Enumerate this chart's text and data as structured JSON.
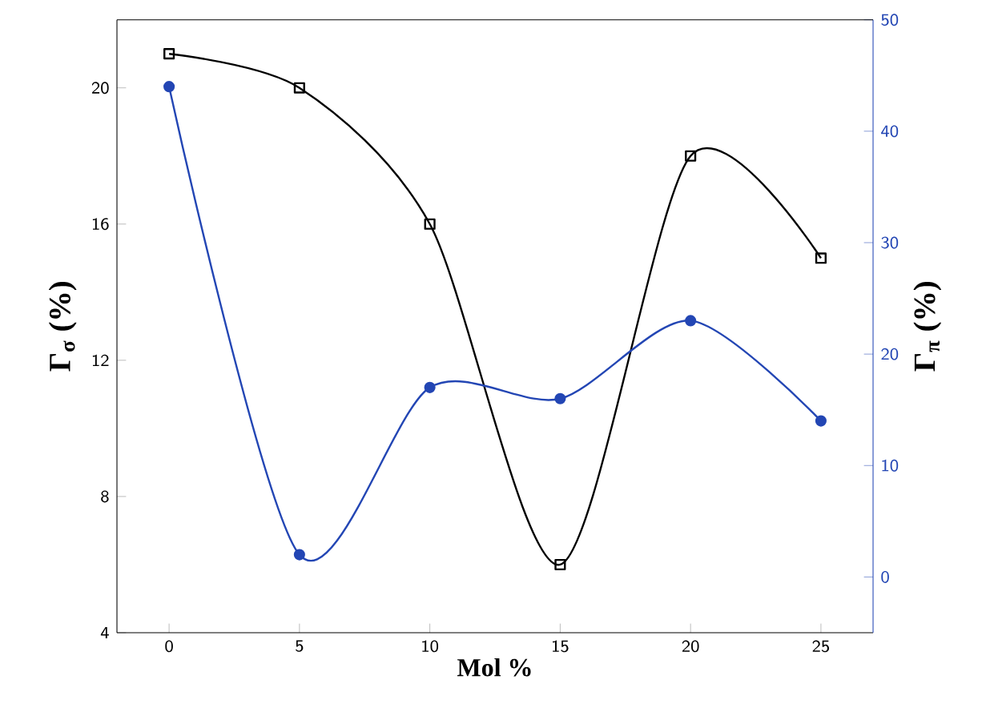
{
  "chart_data": {
    "type": "line",
    "xlabel": "Mol %",
    "ylabel": "Γ$_{σ}$ (%)",
    "y2label": "Γ$_{π}$ (%)",
    "x": [
      0,
      5,
      10,
      15,
      20,
      25
    ],
    "xlim": [
      -2,
      27
    ],
    "xticks": [
      0,
      5,
      10,
      15,
      20,
      25
    ],
    "ylim": [
      4,
      22
    ],
    "yticks": [
      4,
      8,
      12,
      16,
      20
    ],
    "y2lim": [
      -5,
      50
    ],
    "y2ticks": [
      0,
      10,
      20,
      30,
      40,
      50
    ],
    "line_style": "solid",
    "series": [
      {
        "color": "#000000",
        "marker": "square",
        "values": [
          21,
          20,
          16,
          6,
          18,
          15
        ]
      },
      {
        "color": "#2346b4",
        "marker": "circle",
        "axis": "y2",
        "values": [
          44,
          2,
          17,
          16,
          23,
          14
        ]
      }
    ]
  }
}
